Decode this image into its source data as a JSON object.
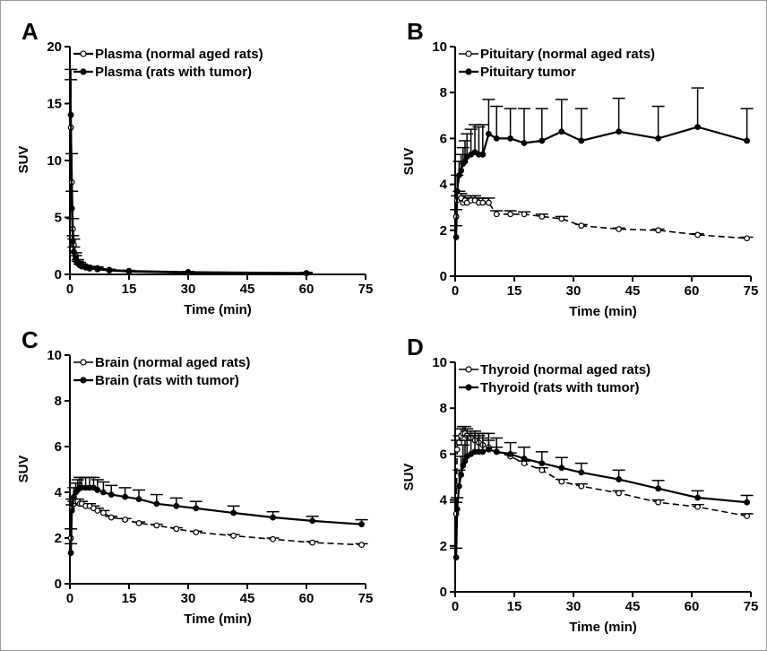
{
  "chart_data": [
    {
      "type": "line",
      "panel_label": "A",
      "xlabel": "Time (min)",
      "ylabel": "SUV",
      "xlim": [
        0,
        75
      ],
      "ylim": [
        0,
        20
      ],
      "xticks": [
        "0",
        "15",
        "30",
        "45",
        "60",
        "75"
      ],
      "yticks": [
        "0",
        "5",
        "10",
        "15",
        "20"
      ],
      "legend_position": "top-left",
      "series": [
        {
          "name": "Plasma (normal aged rats)",
          "style": "open-circle, solid line",
          "x": [
            0.25,
            0.5,
            0.75,
            1,
            1.5,
            2,
            2.5,
            3,
            4,
            5,
            7,
            10,
            15,
            30,
            60
          ],
          "y": [
            12.9,
            8.1,
            4.0,
            2.6,
            1.6,
            1.1,
            0.9,
            0.8,
            0.7,
            0.6,
            0.55,
            0.4,
            0.3,
            0.2,
            0.12
          ],
          "error": [
            4.2,
            2.5,
            0.9,
            0.5,
            0.3,
            0.2,
            0.15,
            0.1,
            0.1,
            0.1,
            0.1,
            0.05,
            0.05,
            0.05,
            0.05
          ]
        },
        {
          "name": "Plasma (rats with tumor)",
          "style": "filled circle, solid line",
          "x": [
            0.25,
            0.5,
            0.75,
            1,
            1.5,
            2,
            2.5,
            3,
            4,
            5,
            7,
            10,
            15,
            30,
            60
          ],
          "y": [
            14.0,
            5.8,
            2.9,
            2.0,
            1.4,
            1.0,
            0.8,
            0.7,
            0.6,
            0.5,
            0.45,
            0.35,
            0.25,
            0.15,
            0.1
          ],
          "error": [
            4.0,
            1.5,
            0.5,
            0.4,
            0.25,
            0.15,
            0.1,
            0.1,
            0.1,
            0.1,
            0.05,
            0.05,
            0.05,
            0.05,
            0.05
          ]
        }
      ]
    },
    {
      "type": "line",
      "panel_label": "B",
      "xlabel": "Time (min)",
      "ylabel": "SUV",
      "xlim": [
        0,
        75
      ],
      "ylim": [
        0,
        10
      ],
      "xticks": [
        "0",
        "15",
        "30",
        "45",
        "60",
        "75"
      ],
      "yticks": [
        "0",
        "2",
        "4",
        "6",
        "8",
        "10"
      ],
      "legend_position": "top-left",
      "series": [
        {
          "name": "Pituitary (normal aged rats)",
          "style": "open-circle, dashed line",
          "x": [
            0.25,
            0.5,
            1,
            1.5,
            2,
            2.5,
            3,
            4,
            5,
            6,
            7,
            8.5,
            10.5,
            14,
            17.5,
            22,
            27,
            32,
            41.5,
            51.5,
            61.5,
            74
          ],
          "y": [
            2.6,
            3.3,
            3.5,
            3.4,
            3.2,
            3.3,
            3.2,
            3.3,
            3.3,
            3.2,
            3.2,
            3.2,
            2.7,
            2.7,
            2.7,
            2.6,
            2.5,
            2.2,
            2.05,
            2.0,
            1.8,
            1.65
          ],
          "error": [
            0.3,
            0.2,
            0.2,
            0.2,
            0.2,
            0.2,
            0.2,
            0.2,
            0.2,
            0.2,
            0.2,
            0.2,
            0.15,
            0.15,
            0.1,
            0.1,
            0.1,
            0.05,
            0.05,
            0.05,
            0.05,
            0.05
          ]
        },
        {
          "name": "Pituitary tumor",
          "style": "filled circle, solid line",
          "x": [
            0.25,
            0.5,
            1,
            1.5,
            2,
            2.5,
            3,
            4,
            5,
            6,
            7,
            8.5,
            10.5,
            14,
            17.5,
            22,
            27,
            32,
            41.5,
            51.5,
            61.5,
            74
          ],
          "y": [
            1.7,
            3.7,
            4.4,
            4.6,
            4.9,
            5.0,
            5.2,
            5.3,
            5.4,
            5.3,
            5.3,
            6.2,
            6.0,
            6.0,
            5.8,
            5.9,
            6.3,
            5.9,
            6.3,
            6.0,
            6.5,
            5.9
          ],
          "error": [
            0.5,
            0.7,
            0.6,
            0.7,
            0.7,
            0.9,
            1.0,
            1.1,
            1.2,
            1.2,
            1.3,
            1.5,
            1.4,
            1.3,
            1.5,
            1.4,
            1.4,
            1.4,
            1.45,
            1.4,
            1.7,
            1.4
          ]
        }
      ]
    },
    {
      "type": "line",
      "panel_label": "C",
      "xlabel": "Time (min)",
      "ylabel": "SUV",
      "xlim": [
        0,
        75
      ],
      "ylim": [
        0,
        10
      ],
      "xticks": [
        "0",
        "15",
        "30",
        "45",
        "60",
        "75"
      ],
      "yticks": [
        "0",
        "2",
        "4",
        "6",
        "8",
        "10"
      ],
      "legend_position": "top-left",
      "series": [
        {
          "name": "Brain (normal aged rats)",
          "style": "open-circle, dashed line",
          "x": [
            0.25,
            0.5,
            1,
            1.5,
            2,
            2.5,
            3,
            4,
            5,
            6,
            7,
            8.5,
            10.5,
            14,
            17.5,
            22,
            27,
            32,
            41.5,
            51.5,
            61.5,
            74
          ],
          "y": [
            2.0,
            3.3,
            3.5,
            3.6,
            3.6,
            3.5,
            3.5,
            3.4,
            3.4,
            3.3,
            3.2,
            3.1,
            2.9,
            2.8,
            2.65,
            2.55,
            2.4,
            2.25,
            2.1,
            1.95,
            1.8,
            1.7
          ],
          "error": [
            0.4,
            0.15,
            0.1,
            0.1,
            0.1,
            0.1,
            0.1,
            0.1,
            0.1,
            0.1,
            0.1,
            0.1,
            0.05,
            0.05,
            0.05,
            0.05,
            0.05,
            0.05,
            0.05,
            0.05,
            0.05,
            0.05
          ]
        },
        {
          "name": "Brain (rats with tumor)",
          "style": "filled circle, solid line",
          "x": [
            0.25,
            0.5,
            1,
            1.5,
            2,
            2.5,
            3,
            4,
            5,
            6,
            7,
            8.5,
            10.5,
            14,
            17.5,
            22,
            27,
            32,
            41.5,
            51.5,
            61.5,
            74
          ],
          "y": [
            1.35,
            3.2,
            3.8,
            4.0,
            4.1,
            4.2,
            4.2,
            4.2,
            4.2,
            4.2,
            4.1,
            4.0,
            3.9,
            3.8,
            3.7,
            3.5,
            3.4,
            3.3,
            3.1,
            2.9,
            2.75,
            2.6
          ],
          "error": [
            0.4,
            0.5,
            0.4,
            0.4,
            0.45,
            0.45,
            0.45,
            0.45,
            0.45,
            0.45,
            0.45,
            0.45,
            0.4,
            0.4,
            0.4,
            0.4,
            0.35,
            0.3,
            0.3,
            0.25,
            0.2,
            0.2
          ]
        }
      ]
    },
    {
      "type": "line",
      "panel_label": "D",
      "xlabel": "Time (min)",
      "ylabel": "SUV",
      "xlim": [
        0,
        75
      ],
      "ylim": [
        0,
        10
      ],
      "xticks": [
        "0",
        "15",
        "30",
        "45",
        "60",
        "75"
      ],
      "yticks": [
        "0",
        "2",
        "4",
        "6",
        "8",
        "10"
      ],
      "legend_position": "top-left",
      "series": [
        {
          "name": "Thyroid (normal aged rats)",
          "style": "open-circle, dashed line",
          "x": [
            0.25,
            0.5,
            1,
            1.5,
            2,
            2.5,
            3,
            4,
            5,
            6,
            7,
            8.5,
            10.5,
            14,
            17.5,
            22,
            27,
            32,
            41.5,
            51.5,
            61.5,
            74
          ],
          "y": [
            3.4,
            6.2,
            6.5,
            6.8,
            6.9,
            6.9,
            6.8,
            6.7,
            6.6,
            6.5,
            6.4,
            6.3,
            6.1,
            5.9,
            5.6,
            5.3,
            4.8,
            4.6,
            4.3,
            3.9,
            3.7,
            3.3
          ],
          "error": [
            0.5,
            0.4,
            0.3,
            0.3,
            0.3,
            0.3,
            0.3,
            0.3,
            0.3,
            0.3,
            0.3,
            0.3,
            0.2,
            0.15,
            0.1,
            0.1,
            0.1,
            0.1,
            0.1,
            0.1,
            0.1,
            0.1
          ]
        },
        {
          "name": "Thyroid (rats with tumor)",
          "style": "filled circle, solid line",
          "x": [
            0.25,
            0.5,
            1,
            1.5,
            2,
            2.5,
            3,
            4,
            5,
            6,
            7,
            8.5,
            10.5,
            14,
            17.5,
            22,
            27,
            32,
            41.5,
            51.5,
            61.5,
            74
          ],
          "y": [
            1.5,
            3.6,
            4.6,
            5.1,
            5.5,
            5.7,
            5.9,
            6.0,
            6.1,
            6.1,
            6.1,
            6.2,
            6.1,
            6.0,
            5.8,
            5.6,
            5.4,
            5.2,
            4.9,
            4.5,
            4.1,
            3.9
          ],
          "error": [
            0.4,
            0.5,
            0.7,
            0.8,
            0.9,
            0.9,
            0.9,
            0.9,
            0.9,
            0.8,
            0.8,
            0.7,
            0.6,
            0.5,
            0.5,
            0.5,
            0.45,
            0.4,
            0.4,
            0.35,
            0.3,
            0.3
          ]
        }
      ]
    }
  ]
}
